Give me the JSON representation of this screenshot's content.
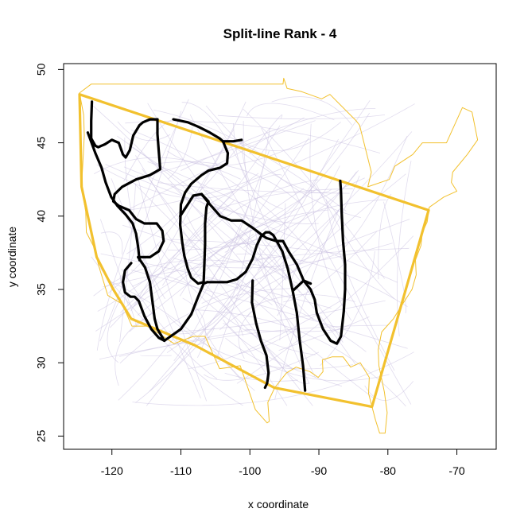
{
  "chart_data": {
    "type": "line",
    "title": "Split-line Rank - 4",
    "xlabel": "x coordinate",
    "ylabel": "y coordinate",
    "xlim": [
      -127,
      -64.3
    ],
    "ylim": [
      24.1,
      50.4
    ],
    "xticks": [
      -120,
      -110,
      -100,
      -90,
      -80,
      -70
    ],
    "yticks": [
      25,
      30,
      35,
      40,
      45,
      50
    ],
    "grid": false,
    "colors": {
      "boundary": "#f2c12e",
      "hull": "#f2c12e",
      "split_line": "#000000",
      "background_lines": "#c8c0e0"
    },
    "series": [
      {
        "style": "boundary-thin",
        "points": [
          [
            -123,
            49
          ],
          [
            -95.2,
            49
          ],
          [
            -95.1,
            49.4
          ],
          [
            -94.6,
            48.7
          ],
          [
            -92.6,
            48.5
          ],
          [
            -89.6,
            48
          ],
          [
            -88.4,
            48.3
          ],
          [
            -84.6,
            46.5
          ],
          [
            -84.1,
            46.2
          ],
          [
            -82.4,
            43
          ],
          [
            -82.9,
            42
          ],
          [
            -79.8,
            42.5
          ],
          [
            -79,
            43.4
          ],
          [
            -76.4,
            44.2
          ],
          [
            -75,
            45
          ],
          [
            -71.5,
            45
          ],
          [
            -69.2,
            47.4
          ],
          [
            -67.8,
            47.1
          ],
          [
            -67,
            45.2
          ],
          [
            -68.5,
            44.2
          ],
          [
            -70.6,
            43
          ],
          [
            -70.8,
            42.3
          ],
          [
            -70,
            41.7
          ],
          [
            -71.9,
            41.3
          ],
          [
            -74,
            40.6
          ],
          [
            -74.3,
            39.6
          ],
          [
            -75,
            38.9
          ],
          [
            -75.2,
            38
          ],
          [
            -76,
            37
          ],
          [
            -75.9,
            36
          ],
          [
            -76.5,
            35
          ],
          [
            -78,
            33.9
          ],
          [
            -79.2,
            33
          ],
          [
            -80.9,
            32.1
          ],
          [
            -81.4,
            30.9
          ],
          [
            -81.3,
            29.8
          ],
          [
            -80.5,
            28
          ],
          [
            -80.1,
            26.6
          ],
          [
            -80.4,
            25.2
          ],
          [
            -81.2,
            25.2
          ],
          [
            -81.8,
            26.1
          ],
          [
            -82.8,
            27.9
          ],
          [
            -82.7,
            29
          ],
          [
            -84,
            30
          ],
          [
            -85.4,
            29.7
          ],
          [
            -86.5,
            30.4
          ],
          [
            -88.1,
            30.4
          ],
          [
            -89.5,
            30.2
          ],
          [
            -89.4,
            29.4
          ],
          [
            -90.1,
            29
          ],
          [
            -91.3,
            29.4
          ],
          [
            -93.3,
            29.7
          ],
          [
            -94.7,
            29.3
          ],
          [
            -96.4,
            28.3
          ],
          [
            -97.4,
            27.3
          ],
          [
            -97.2,
            26
          ],
          [
            -97.5,
            25.9
          ],
          [
            -99.2,
            26.8
          ],
          [
            -101.4,
            29.8
          ],
          [
            -102.7,
            29.7
          ],
          [
            -104.4,
            29.6
          ],
          [
            -106.5,
            31.8
          ],
          [
            -108.2,
            31.8
          ],
          [
            -111,
            31.3
          ],
          [
            -114.8,
            32.5
          ],
          [
            -117.1,
            32.5
          ],
          [
            -118.5,
            34
          ],
          [
            -120.6,
            34.6
          ],
          [
            -121.9,
            36.6
          ],
          [
            -122.5,
            37.8
          ],
          [
            -123.7,
            38.9
          ],
          [
            -123.8,
            40.3
          ],
          [
            -124.4,
            42
          ],
          [
            -124,
            45.5
          ],
          [
            -124.1,
            46.9
          ],
          [
            -124.7,
            48.4
          ],
          [
            -123,
            49
          ]
        ]
      },
      {
        "style": "hull-thick",
        "points": [
          [
            -124.7,
            48.3
          ],
          [
            -74.1,
            40.4
          ],
          [
            -82.3,
            27
          ],
          [
            -96.5,
            28.3
          ],
          [
            -108,
            31.2
          ],
          [
            -117.2,
            33
          ],
          [
            -119.8,
            35
          ],
          [
            -122.2,
            37.2
          ],
          [
            -124.4,
            42
          ],
          [
            -124.7,
            48.3
          ]
        ]
      },
      {
        "style": "split-line",
        "points": [
          [
            -122.9,
            47.8
          ],
          [
            -123,
            46.5
          ],
          [
            -123,
            45.3
          ],
          [
            -122.4,
            44.8
          ],
          [
            -122,
            44.7
          ],
          [
            -121,
            44.9
          ],
          [
            -120,
            45.2
          ],
          [
            -119,
            45
          ],
          [
            -118.4,
            44.2
          ],
          [
            -118,
            44
          ],
          [
            -117.4,
            44.5
          ],
          [
            -116.9,
            45.5
          ],
          [
            -116,
            46.2
          ],
          [
            -115.5,
            46.4
          ],
          [
            -114.5,
            46.6
          ],
          [
            -113.4,
            46.6
          ]
        ]
      },
      {
        "style": "split-line",
        "points": [
          [
            -123.5,
            45.7
          ],
          [
            -122.4,
            44.3
          ],
          [
            -121.5,
            43.3
          ],
          [
            -120.9,
            42.3
          ],
          [
            -120.1,
            41.3
          ],
          [
            -119.2,
            40.7
          ],
          [
            -118,
            40.1
          ],
          [
            -117,
            39.5
          ],
          [
            -116.5,
            38.8
          ],
          [
            -116.2,
            37.9
          ],
          [
            -116,
            37
          ]
        ]
      },
      {
        "style": "split-line",
        "points": [
          [
            -113.4,
            46.6
          ],
          [
            -113.4,
            45.6
          ],
          [
            -113.2,
            44.4
          ],
          [
            -113,
            43.2
          ],
          [
            -114.5,
            42.8
          ],
          [
            -116.5,
            42.5
          ],
          [
            -118.5,
            42
          ],
          [
            -119.6,
            41.5
          ],
          [
            -119.8,
            41
          ],
          [
            -119,
            40.7
          ],
          [
            -117.5,
            40.4
          ],
          [
            -116.5,
            39.8
          ],
          [
            -115.3,
            39.5
          ],
          [
            -113.5,
            39.5
          ],
          [
            -112.7,
            39
          ],
          [
            -112.5,
            38.3
          ],
          [
            -113.2,
            37.6
          ],
          [
            -114.5,
            37.2
          ],
          [
            -116.2,
            37.2
          ]
        ]
      },
      {
        "style": "split-line",
        "points": [
          [
            -117.2,
            36.8
          ],
          [
            -118.1,
            36.3
          ],
          [
            -118.4,
            35.5
          ],
          [
            -118.1,
            34.8
          ],
          [
            -117.3,
            34.5
          ],
          [
            -116.7,
            34.5
          ],
          [
            -116.1,
            34.2
          ],
          [
            -115.3,
            33.2
          ],
          [
            -114.3,
            32.3
          ],
          [
            -113.2,
            31.7
          ],
          [
            -112.4,
            31.5
          ],
          [
            -111.5,
            31.8
          ],
          [
            -110,
            32.3
          ],
          [
            -108.5,
            33.3
          ],
          [
            -107.5,
            34.5
          ],
          [
            -106.7,
            35.4
          ],
          [
            -106.2,
            35.5
          ]
        ]
      },
      {
        "style": "split-line",
        "points": [
          [
            -116.2,
            37.2
          ],
          [
            -115.2,
            36.5
          ],
          [
            -114.5,
            35.5
          ],
          [
            -114.1,
            34.1
          ],
          [
            -113.8,
            33
          ],
          [
            -113.4,
            32.3
          ],
          [
            -112.4,
            31.5
          ]
        ]
      },
      {
        "style": "split-line",
        "points": [
          [
            -111.1,
            46.6
          ],
          [
            -109,
            46.4
          ],
          [
            -107.5,
            46.1
          ],
          [
            -105.8,
            45.7
          ],
          [
            -104.4,
            45.3
          ],
          [
            -103.9,
            45.1
          ],
          [
            -103.2,
            44.3
          ],
          [
            -103.3,
            43.6
          ],
          [
            -104.3,
            43.3
          ],
          [
            -106,
            43.1
          ],
          [
            -107,
            42.8
          ],
          [
            -108.5,
            42.2
          ],
          [
            -109.4,
            41.6
          ],
          [
            -110,
            40.8
          ],
          [
            -110.1,
            39.4
          ],
          [
            -109.8,
            38.2
          ],
          [
            -109.5,
            37.3
          ],
          [
            -109,
            36.4
          ],
          [
            -108.5,
            35.8
          ],
          [
            -107.5,
            35.4
          ],
          [
            -106.7,
            35.5
          ],
          [
            -106.6,
            36.7
          ],
          [
            -106.5,
            38.1
          ],
          [
            -106.5,
            39.5
          ],
          [
            -106.3,
            40.6
          ],
          [
            -106,
            41
          ],
          [
            -107,
            41.5
          ],
          [
            -108.2,
            41.4
          ],
          [
            -109,
            40.8
          ],
          [
            -110.1,
            40
          ]
        ]
      },
      {
        "style": "split-line",
        "points": [
          [
            -103.9,
            45.1
          ],
          [
            -102.4,
            45.1
          ],
          [
            -101.2,
            45.2
          ]
        ]
      },
      {
        "style": "split-line",
        "points": [
          [
            -107,
            41.5
          ],
          [
            -105.8,
            40.8
          ],
          [
            -104.3,
            40
          ],
          [
            -102.7,
            39.7
          ],
          [
            -101.2,
            39.7
          ],
          [
            -99.6,
            39.2
          ],
          [
            -98.2,
            38.7
          ],
          [
            -97.6,
            38.5
          ],
          [
            -96.2,
            38.3
          ],
          [
            -95.2,
            38.3
          ],
          [
            -94.4,
            37.6
          ],
          [
            -93.2,
            36.7
          ],
          [
            -92.2,
            35.6
          ],
          [
            -91.2,
            35
          ],
          [
            -90.6,
            34.3
          ],
          [
            -90.3,
            33.4
          ],
          [
            -89.4,
            32.3
          ],
          [
            -88.3,
            31.5
          ],
          [
            -87.4,
            31.3
          ],
          [
            -86.8,
            31.8
          ],
          [
            -86.4,
            33.5
          ],
          [
            -86.2,
            35
          ],
          [
            -86.2,
            36.7
          ],
          [
            -86.5,
            38.3
          ],
          [
            -86.7,
            40.2
          ],
          [
            -86.8,
            41.7
          ],
          [
            -86.9,
            42.4
          ]
        ]
      },
      {
        "style": "split-line",
        "points": [
          [
            -106.2,
            35.5
          ],
          [
            -104.6,
            35.5
          ],
          [
            -103.3,
            35.5
          ],
          [
            -101.9,
            35.7
          ],
          [
            -100.6,
            36.2
          ],
          [
            -99.6,
            37.1
          ],
          [
            -99,
            38
          ],
          [
            -98.4,
            38.6
          ],
          [
            -97.7,
            38.9
          ],
          [
            -97.2,
            38.9
          ],
          [
            -96.6,
            38.7
          ],
          [
            -95.3,
            37.6
          ],
          [
            -94.5,
            36.4
          ],
          [
            -93.8,
            34.9
          ],
          [
            -93.2,
            33.4
          ],
          [
            -92.8,
            31.6
          ],
          [
            -92.3,
            29.8
          ],
          [
            -92,
            28.1
          ]
        ]
      },
      {
        "style": "split-line",
        "points": [
          [
            -99.6,
            35.6
          ],
          [
            -99.7,
            34.1
          ],
          [
            -99.1,
            32.7
          ],
          [
            -98.4,
            31.5
          ],
          [
            -97.6,
            30.5
          ],
          [
            -97.3,
            29.3
          ],
          [
            -97.5,
            28.6
          ],
          [
            -97.8,
            28.3
          ]
        ]
      },
      {
        "style": "split-line",
        "points": [
          [
            -93.8,
            34.9
          ],
          [
            -92.2,
            35.6
          ],
          [
            -91.2,
            35.4
          ]
        ]
      }
    ]
  }
}
